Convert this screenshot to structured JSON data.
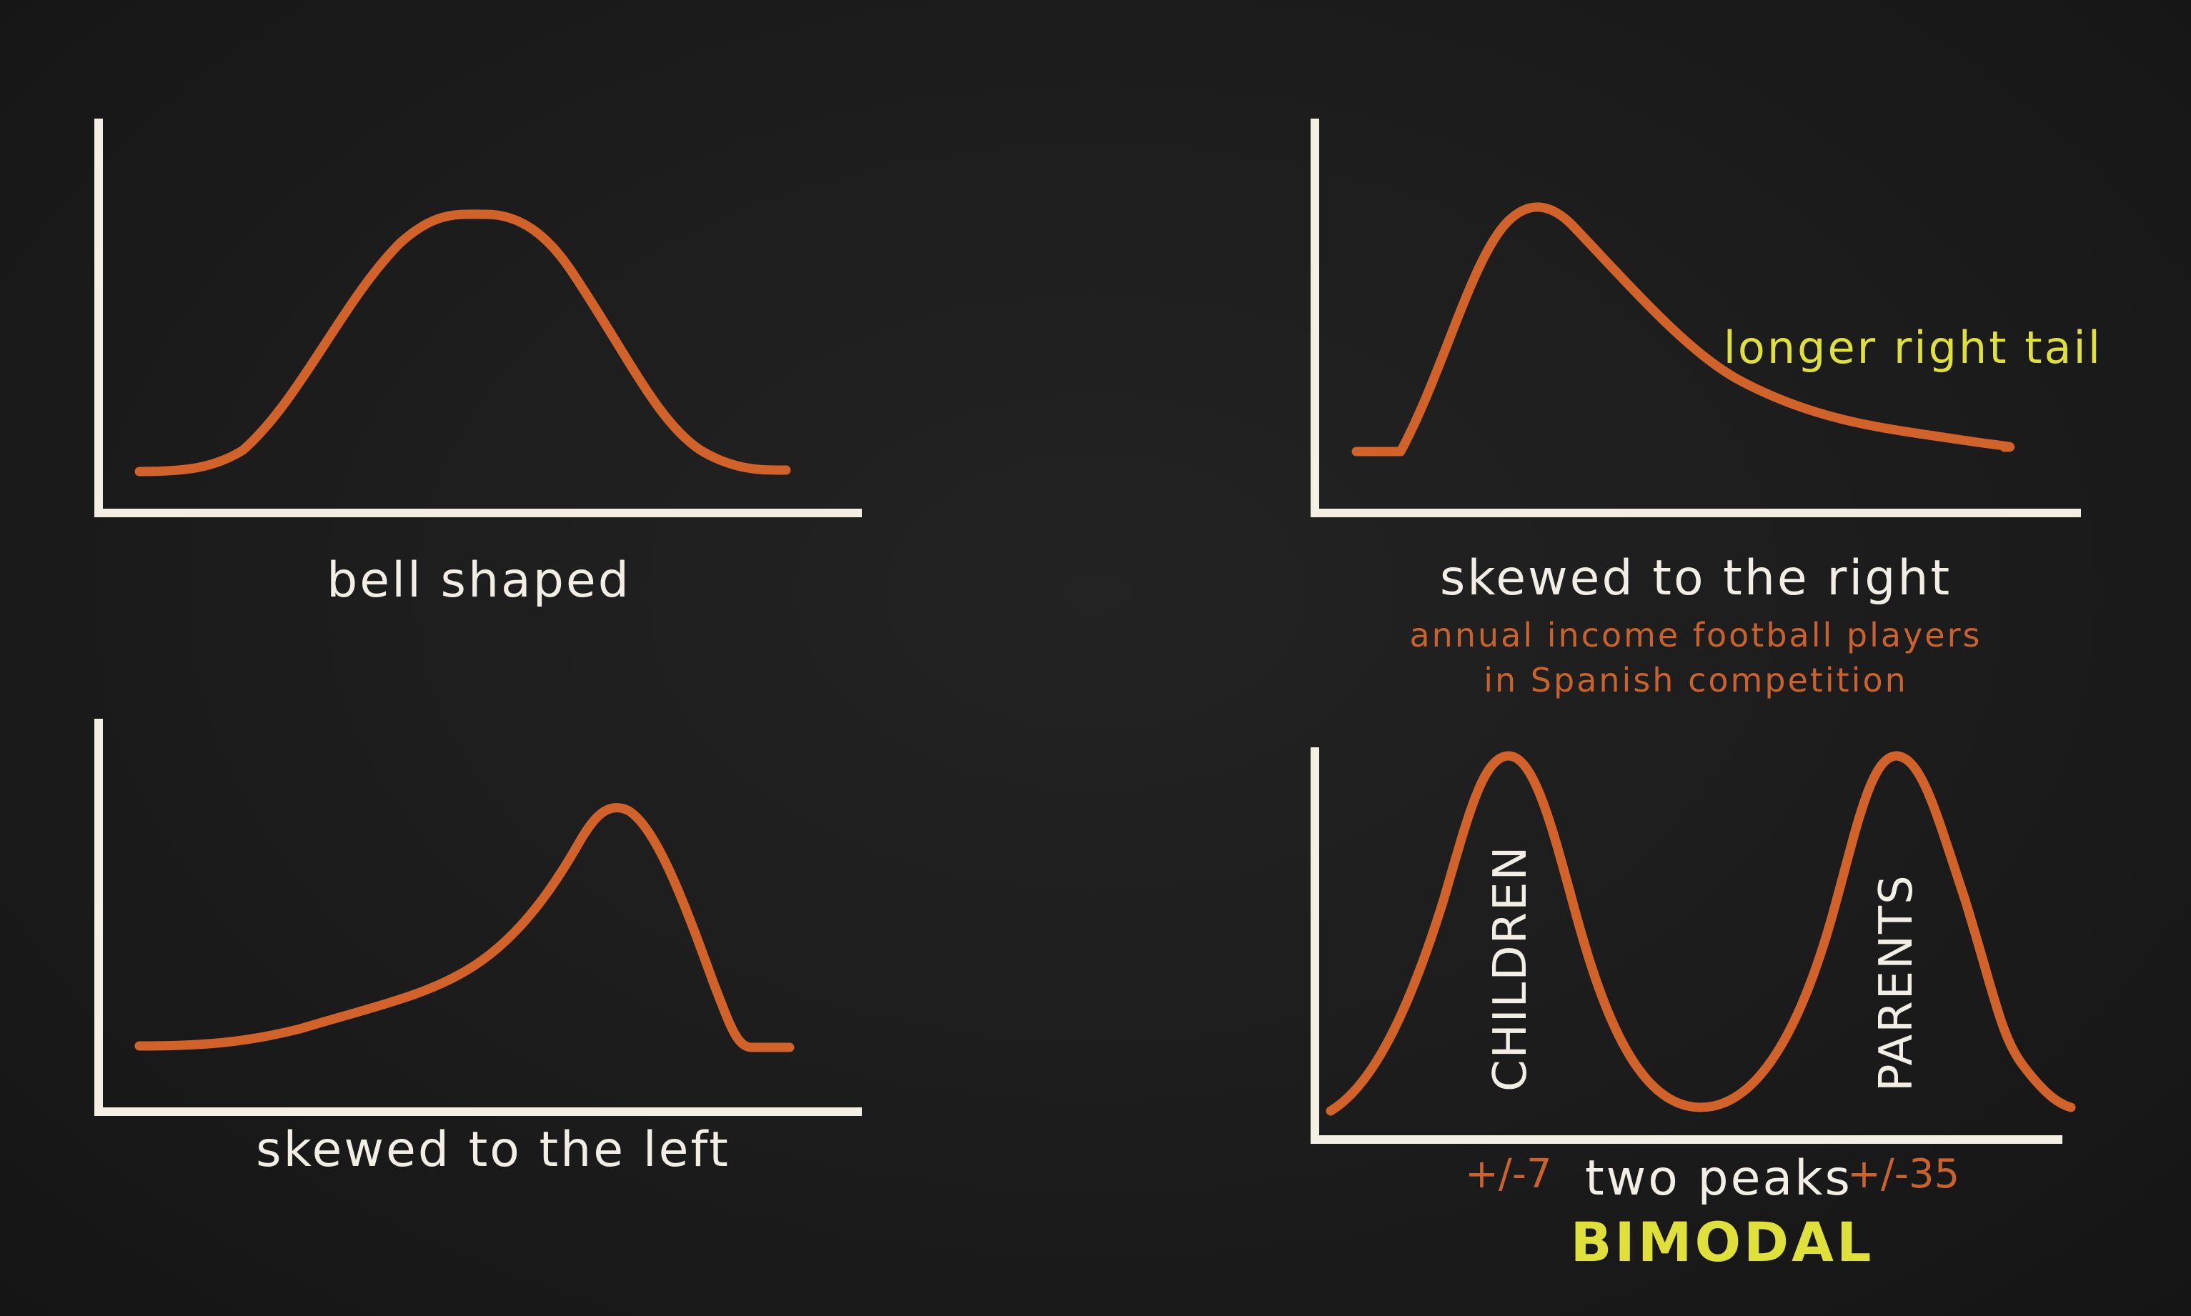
{
  "panels": {
    "bell": {
      "label": "bell shaped"
    },
    "right_skew": {
      "label": "skewed to the right",
      "tail_note": "longer right tail",
      "example_line1": "annual income football players",
      "example_line2": "in Spanish competition"
    },
    "left_skew": {
      "label": "skewed to the left"
    },
    "bimodal": {
      "peak1_label": "CHILDREN",
      "peak2_label": "PARENTS",
      "peak1_range": "+/-7",
      "peak2_range": "+/-35",
      "label": "two peaks",
      "title": "BIMODAL"
    }
  },
  "colors": {
    "background": "#1c1c1c",
    "axis": "#f4efe4",
    "curve": "#d0622a",
    "text_white": "#f2eee6",
    "text_orange": "#c9622c",
    "text_yellow": "#dfe03a"
  }
}
